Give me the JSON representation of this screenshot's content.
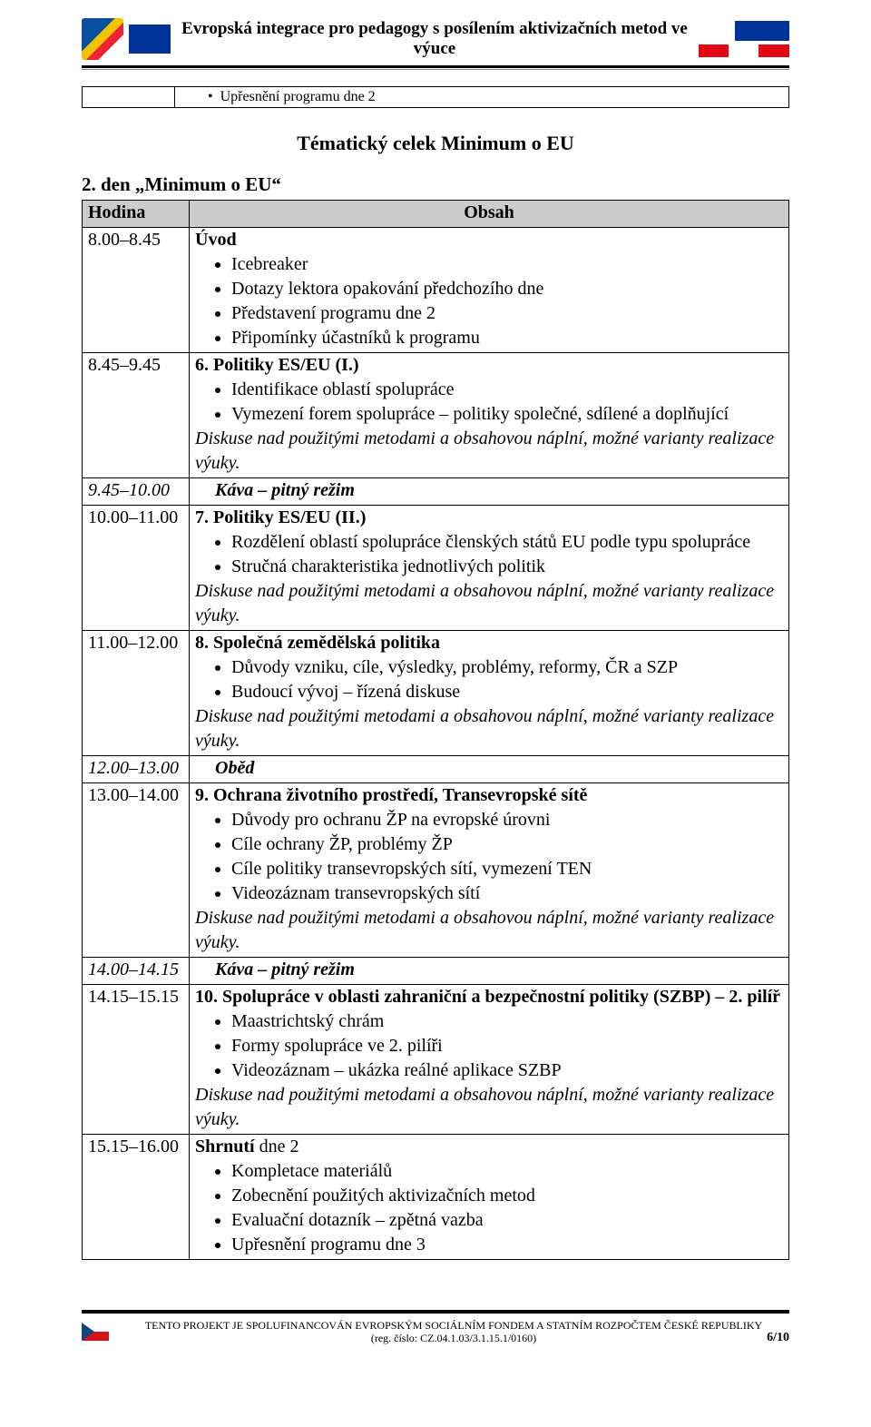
{
  "colors": {
    "header_row_bg": "#cccccc",
    "border": "#000000",
    "text": "#000000",
    "page_bg": "#ffffff",
    "eu_blue": "#003399",
    "cz_red": "#d7141a",
    "cz_blue": "#11457e"
  },
  "header": {
    "title": "Evropská integrace pro pedagogy s posílením aktivizačních metod ve výuce",
    "left_logo1_alt": "ESF logo",
    "left_logo2_alt": "EU flag",
    "right_logo_alt": "EU program logo"
  },
  "top_box": {
    "bullet": "Upřesnění programu dne 2"
  },
  "section": {
    "title": "Tématický celek Minimum o EU",
    "day_title": "2. den „Minimum o EU“",
    "col_time": "Hodina",
    "col_content": "Obsah",
    "diskuse_note": "Diskuse nad použitými metodami a obsahovou náplní, možné varianty realizace výuky."
  },
  "rows": [
    {
      "time": "8.00–8.45",
      "lead_bold": "Úvod",
      "bullets": [
        "Icebreaker",
        "Dotazy lektora opakování předchozího dne",
        "Představení programu dne 2",
        "Připomínky účastníků k programu"
      ],
      "diskuse": false
    },
    {
      "time": "8.45–9.45",
      "lead_bold": "6.  Politiky ES/EU (I.)",
      "bullets": [
        "Identifikace oblastí spolupráce",
        "Vymezení forem spolupráce – politiky společné, sdílené a doplňující"
      ],
      "diskuse": true
    },
    {
      "time": "9.45–10.00",
      "break": "Káva – pitný režim"
    },
    {
      "time": "10.00–11.00",
      "lead_bold": "7.  Politiky ES/EU (II.)",
      "bullets": [
        "Rozdělení oblastí spolupráce členských států EU podle typu spolupráce",
        "Stručná charakteristika jednotlivých politik"
      ],
      "diskuse": true
    },
    {
      "time": "11.00–12.00",
      "lead_bold": "8.  Společná zemědělská politika",
      "bullets": [
        "Důvody vzniku, cíle, výsledky, problémy, reformy, ČR a SZP",
        "Budoucí vývoj – řízená diskuse"
      ],
      "diskuse": true
    },
    {
      "time": "12.00–13.00",
      "break": "Oběd"
    },
    {
      "time": "13.00–14.00",
      "lead_bold": "9.  Ochrana životního prostředí, Transevropské sítě",
      "bullets": [
        "Důvody pro ochranu ŽP na evropské úrovni",
        "Cíle ochrany ŽP, problémy ŽP",
        "Cíle politiky transevropských sítí, vymezení TEN",
        "Videozáznam transevropských sítí"
      ],
      "diskuse": true
    },
    {
      "time": "14.00–14.15",
      "break": "Káva – pitný režim"
    },
    {
      "time": "14.15–15.15",
      "lead_bold": "10.  Spolupráce v oblasti zahraniční a bezpečnostní politiky (SZBP) – 2. pilíř",
      "bullets": [
        "Maastrichtský chrám",
        "Formy spolupráce ve 2. pilíři",
        "Videozáznam – ukázka reálné aplikace SZBP"
      ],
      "diskuse": true
    },
    {
      "time": "15.15–16.00",
      "lead_plain_prefix": "Shrnutí",
      "lead_plain_suffix": "  dne 2",
      "bullets": [
        "Kompletace materiálů",
        "Zobecnění použitých aktivizačních metod",
        "Evaluační dotazník – zpětná vazba",
        "Upřesnění programu dne 3"
      ],
      "diskuse": false
    }
  ],
  "footer": {
    "line1": "TENTO PROJEKT JE SPOLUFINANCOVÁN EVROPSKÝM SOCIÁLNÍM FONDEM A STATNÍM ROZPOČTEM ČESKÉ REPUBLIKY",
    "line2": "(reg. číslo: CZ.04.1.03/3.1.15.1/0160)",
    "page": "6/10"
  }
}
